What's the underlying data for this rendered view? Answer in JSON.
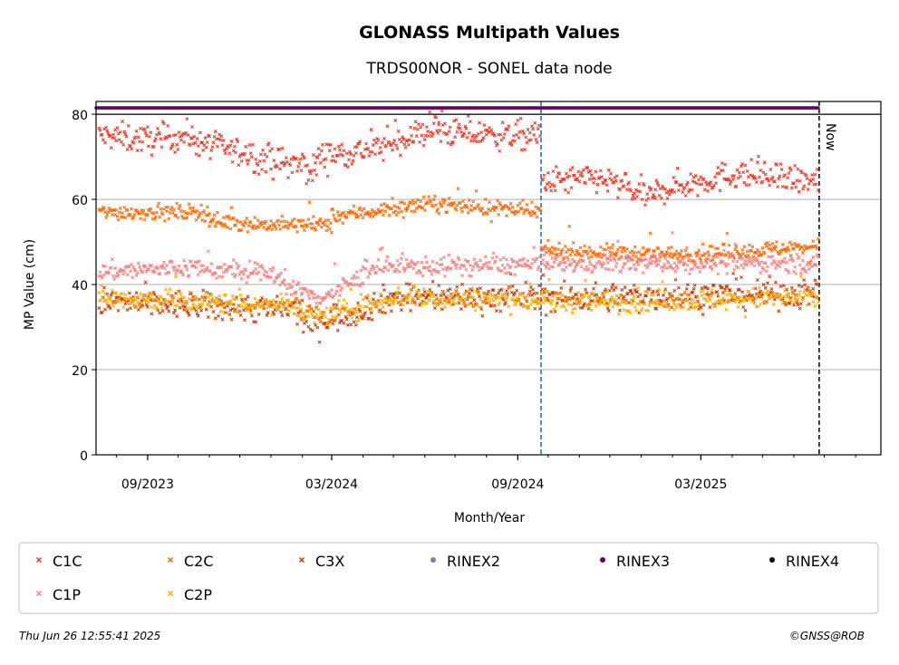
{
  "chart_data": {
    "type": "scatter",
    "title": "GLONASS Multipath Values",
    "subtitle": "TRDS00NOR - SONEL data node",
    "xlabel": "Month/Year",
    "ylabel": "MP Value (cm)",
    "ylim": [
      0,
      83
    ],
    "xlim": [
      "2023-07-12",
      "2025-08-26"
    ],
    "yticks": [
      0,
      20,
      40,
      60,
      80
    ],
    "xticks": [
      {
        "date": "2023-09-01",
        "label": "09/2023"
      },
      {
        "date": "2024-03-01",
        "label": "03/2024"
      },
      {
        "date": "2024-09-01",
        "label": "09/2024"
      },
      {
        "date": "2025-03-01",
        "label": "03/2025"
      }
    ],
    "grid": "horizontal",
    "annotations": [
      {
        "type": "vline",
        "date": "2024-09-24",
        "color": "#1a66b3",
        "style": "dashed"
      },
      {
        "type": "vline",
        "date": "2025-06-26",
        "color": "#000000",
        "style": "dashed",
        "label": "Now"
      },
      {
        "type": "hline",
        "value": 80,
        "color": "#000000"
      }
    ],
    "series": [
      {
        "name": "C1C",
        "color": "#ee3322",
        "marker": "x",
        "segments": [
          {
            "from": "2023-07-15",
            "to": "2023-10-15",
            "y": [
              75,
              74,
              75
            ]
          },
          {
            "from": "2023-10-15",
            "to": "2024-02-15",
            "y": [
              74,
              70,
              67
            ]
          },
          {
            "from": "2024-02-15",
            "to": "2024-06-15",
            "y": [
              70,
              72,
              77
            ]
          },
          {
            "from": "2024-06-15",
            "to": "2024-09-23",
            "y": [
              76,
              75,
              75
            ]
          },
          {
            "from": "2024-09-25",
            "to": "2025-01-15",
            "y": [
              64,
              65,
              60
            ]
          },
          {
            "from": "2025-01-15",
            "to": "2025-06-25",
            "y": [
              62,
              66,
              64
            ]
          }
        ]
      },
      {
        "name": "C2C",
        "color": "#ff6600",
        "marker": "x",
        "segments": [
          {
            "from": "2023-07-15",
            "to": "2023-11-01",
            "y": [
              57,
              57,
              57
            ]
          },
          {
            "from": "2023-11-01",
            "to": "2024-03-01",
            "y": [
              55,
              54,
              54
            ]
          },
          {
            "from": "2024-03-01",
            "to": "2024-09-23",
            "y": [
              56,
              59,
              57
            ]
          },
          {
            "from": "2024-09-25",
            "to": "2025-06-25",
            "y": [
              48,
              47,
              49
            ]
          }
        ]
      },
      {
        "name": "C3X",
        "color": "#cc3300",
        "marker": "x",
        "segments": [
          {
            "from": "2023-07-15",
            "to": "2024-02-01",
            "y": [
              36,
              35,
              34
            ]
          },
          {
            "from": "2024-02-01",
            "to": "2024-05-01",
            "y": [
              31,
              33,
              37
            ]
          },
          {
            "from": "2024-05-01",
            "to": "2025-06-25",
            "y": [
              37,
              37,
              38
            ]
          }
        ]
      },
      {
        "name": "C1P",
        "color": "#f77f7f",
        "marker": "x",
        "segments": [
          {
            "from": "2023-07-15",
            "to": "2024-01-15",
            "y": [
              43,
              44,
              42
            ]
          },
          {
            "from": "2024-01-15",
            "to": "2024-04-01",
            "y": [
              39,
              37,
              42
            ]
          },
          {
            "from": "2024-04-01",
            "to": "2025-06-25",
            "y": [
              44,
              45,
              45
            ]
          }
        ]
      },
      {
        "name": "C2P",
        "color": "#ffaa00",
        "marker": "x",
        "segments": [
          {
            "from": "2023-07-15",
            "to": "2024-02-01",
            "y": [
              37,
              36,
              35
            ]
          },
          {
            "from": "2024-02-01",
            "to": "2024-05-01",
            "y": [
              32,
              34,
              37
            ]
          },
          {
            "from": "2024-05-01",
            "to": "2025-06-25",
            "y": [
              37,
              36,
              37
            ]
          }
        ]
      },
      {
        "name": "RINEX2",
        "color": "#8877bb",
        "marker": "o",
        "segments": []
      },
      {
        "name": "RINEX3",
        "color": "#660066",
        "marker": "o",
        "segments": [
          {
            "from": "2023-07-12",
            "to": "2025-06-25",
            "y": [
              81.5,
              81.5,
              81.5
            ]
          }
        ]
      },
      {
        "name": "RINEX4",
        "color": "#220022",
        "marker": "o",
        "segments": []
      }
    ]
  },
  "footer": {
    "timestamp": "Thu Jun 26 12:55:41 2025",
    "credit": "©GNSS@ROB"
  }
}
